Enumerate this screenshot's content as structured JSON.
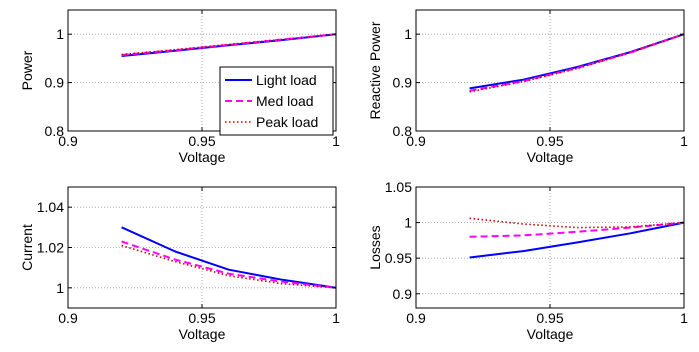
{
  "legend_entries": [
    {
      "label": "Light load",
      "color": "#0000ff",
      "dash": "solid"
    },
    {
      "label": "Med load",
      "color": "#ff00ff",
      "dash": "dashed"
    },
    {
      "label": "Peak load",
      "color": "#cc0000",
      "dash": "dotted"
    }
  ],
  "chart_data": [
    {
      "type": "line",
      "xlabel": "Voltage",
      "ylabel": "Power",
      "xlim": [
        0.9,
        1
      ],
      "ylim": [
        0.8,
        1.05
      ],
      "xticks": [
        "0.9",
        "0.95",
        "1"
      ],
      "yticks": [
        "0.8",
        "0.9",
        "1"
      ],
      "grid": true,
      "legend": "inside right",
      "x": [
        0.92,
        0.94,
        0.96,
        0.98,
        1.0
      ],
      "series": [
        {
          "name": "Light load",
          "color": "#0000ff",
          "dash": "solid",
          "values": [
            0.955,
            0.966,
            0.977,
            0.988,
            1.0
          ]
        },
        {
          "name": "Med load",
          "color": "#ff00ff",
          "dash": "dashed",
          "values": [
            0.957,
            0.967,
            0.978,
            0.989,
            1.0
          ]
        },
        {
          "name": "Peak load",
          "color": "#cc0000",
          "dash": "dotted",
          "values": [
            0.958,
            0.968,
            0.979,
            0.989,
            1.0
          ]
        }
      ]
    },
    {
      "type": "line",
      "xlabel": "Voltage",
      "ylabel": "Reactive Power",
      "xlim": [
        0.9,
        1
      ],
      "ylim": [
        0.8,
        1.05
      ],
      "xticks": [
        "0.9",
        "0.95",
        "1"
      ],
      "yticks": [
        "0.8",
        "0.9",
        "1"
      ],
      "grid": true,
      "x": [
        0.92,
        0.94,
        0.96,
        0.98,
        1.0
      ],
      "series": [
        {
          "name": "Light load",
          "color": "#0000ff",
          "dash": "solid",
          "values": [
            0.888,
            0.906,
            0.932,
            0.963,
            1.0
          ]
        },
        {
          "name": "Med load",
          "color": "#ff00ff",
          "dash": "dashed",
          "values": [
            0.883,
            0.903,
            0.93,
            0.962,
            1.0
          ]
        },
        {
          "name": "Peak load",
          "color": "#cc0000",
          "dash": "dotted",
          "values": [
            0.881,
            0.902,
            0.929,
            0.962,
            1.0
          ]
        }
      ]
    },
    {
      "type": "line",
      "xlabel": "Voltage",
      "ylabel": "Current",
      "xlim": [
        0.9,
        1
      ],
      "ylim": [
        0.99,
        1.05
      ],
      "xticks": [
        "0.9",
        "0.95",
        "1"
      ],
      "yticks": [
        "1",
        "1.02",
        "1.04"
      ],
      "grid": true,
      "x": [
        0.92,
        0.94,
        0.96,
        0.98,
        1.0
      ],
      "series": [
        {
          "name": "Light load",
          "color": "#0000ff",
          "dash": "solid",
          "values": [
            1.03,
            1.018,
            1.009,
            1.004,
            1.0
          ]
        },
        {
          "name": "Med load",
          "color": "#ff00ff",
          "dash": "dashed",
          "values": [
            1.023,
            1.014,
            1.007,
            1.003,
            1.0
          ]
        },
        {
          "name": "Peak load",
          "color": "#cc0000",
          "dash": "dotted",
          "values": [
            1.021,
            1.013,
            1.006,
            1.002,
            1.0
          ]
        }
      ]
    },
    {
      "type": "line",
      "xlabel": "Voltage",
      "ylabel": "Losses",
      "xlim": [
        0.9,
        1
      ],
      "ylim": [
        0.88,
        1.05
      ],
      "xticks": [
        "0.9",
        "0.95",
        "1"
      ],
      "yticks": [
        "0.9",
        "0.95",
        "1",
        "1.05"
      ],
      "grid": true,
      "x": [
        0.92,
        0.94,
        0.96,
        0.98,
        1.0
      ],
      "series": [
        {
          "name": "Light load",
          "color": "#0000ff",
          "dash": "solid",
          "values": [
            0.951,
            0.96,
            0.972,
            0.985,
            1.0
          ]
        },
        {
          "name": "Med load",
          "color": "#ff00ff",
          "dash": "dashed",
          "values": [
            0.98,
            0.982,
            0.987,
            0.993,
            1.0
          ]
        },
        {
          "name": "Peak load",
          "color": "#cc0000",
          "dash": "dotted",
          "values": [
            1.006,
            0.998,
            0.993,
            0.994,
            1.0
          ]
        }
      ]
    }
  ]
}
